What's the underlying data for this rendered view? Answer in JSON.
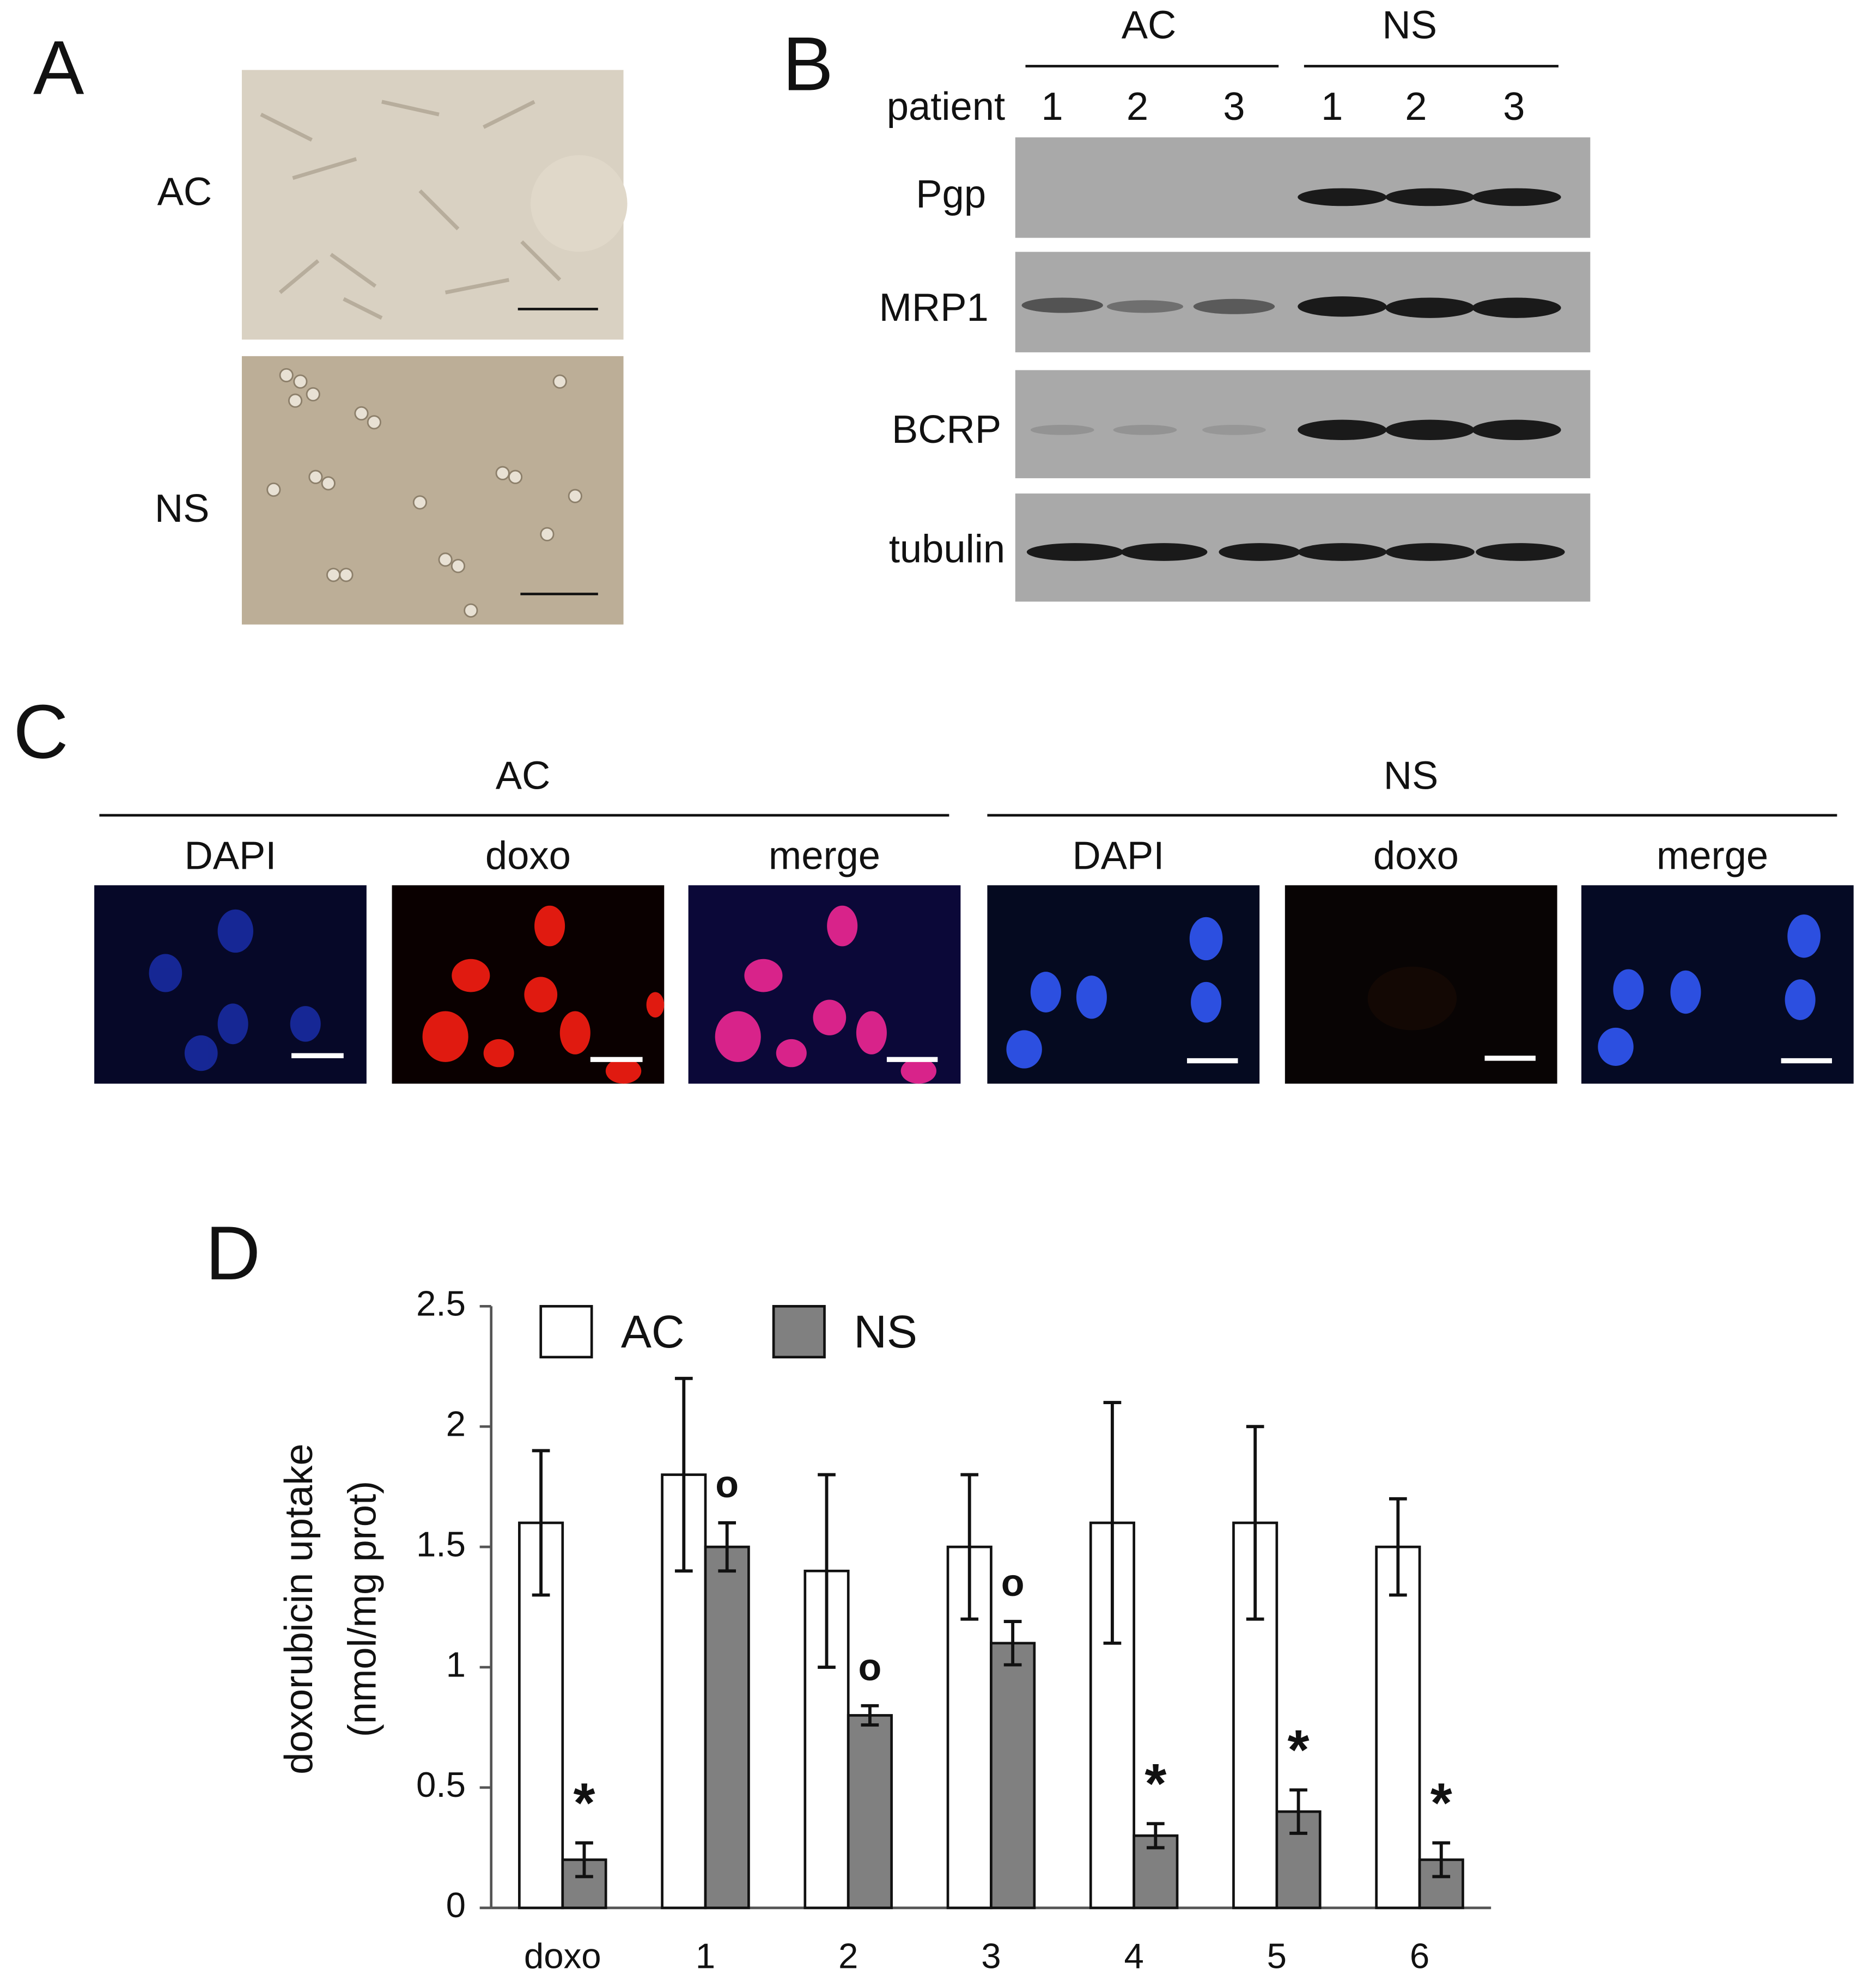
{
  "panel_a": {
    "label": "A",
    "rows": [
      "AC",
      "NS"
    ]
  },
  "panel_b": {
    "label": "B",
    "groups": [
      "AC",
      "NS"
    ],
    "row_label": "patient",
    "lanes": [
      "1",
      "2",
      "3",
      "1",
      "2",
      "3"
    ],
    "proteins": [
      "Pgp",
      "MRP1",
      "BCRP",
      "tubulin"
    ]
  },
  "panel_c": {
    "label": "C",
    "groups": [
      "AC",
      "NS"
    ],
    "channels": [
      "DAPI",
      "doxo",
      "merge",
      "DAPI",
      "doxo",
      "merge"
    ]
  },
  "chart_data": {
    "type": "bar",
    "panel_label": "D",
    "ylabel": [
      "doxorubicin uptake",
      "(nmol/mg prot)"
    ],
    "categories": [
      "doxo",
      "1",
      "2",
      "3",
      "4",
      "5",
      "6"
    ],
    "series": [
      {
        "name": "AC",
        "color": "#ffffff",
        "values": [
          1.6,
          1.8,
          1.4,
          1.5,
          1.6,
          1.6,
          1.5
        ],
        "errors": [
          0.3,
          0.4,
          0.4,
          0.3,
          0.5,
          0.4,
          0.2
        ]
      },
      {
        "name": "NS",
        "color": "#808080",
        "values": [
          0.2,
          1.5,
          0.8,
          1.1,
          0.3,
          0.4,
          0.2
        ],
        "errors": [
          0.07,
          0.1,
          0.04,
          0.09,
          0.05,
          0.09,
          0.07
        ],
        "annotations": [
          "*",
          "o",
          "o",
          "o",
          "*",
          "*",
          "*"
        ]
      }
    ],
    "ylim": [
      0,
      2.5
    ],
    "yticks": [
      0,
      0.5,
      1,
      1.5,
      2,
      2.5
    ],
    "grid": false,
    "legend": "top"
  }
}
